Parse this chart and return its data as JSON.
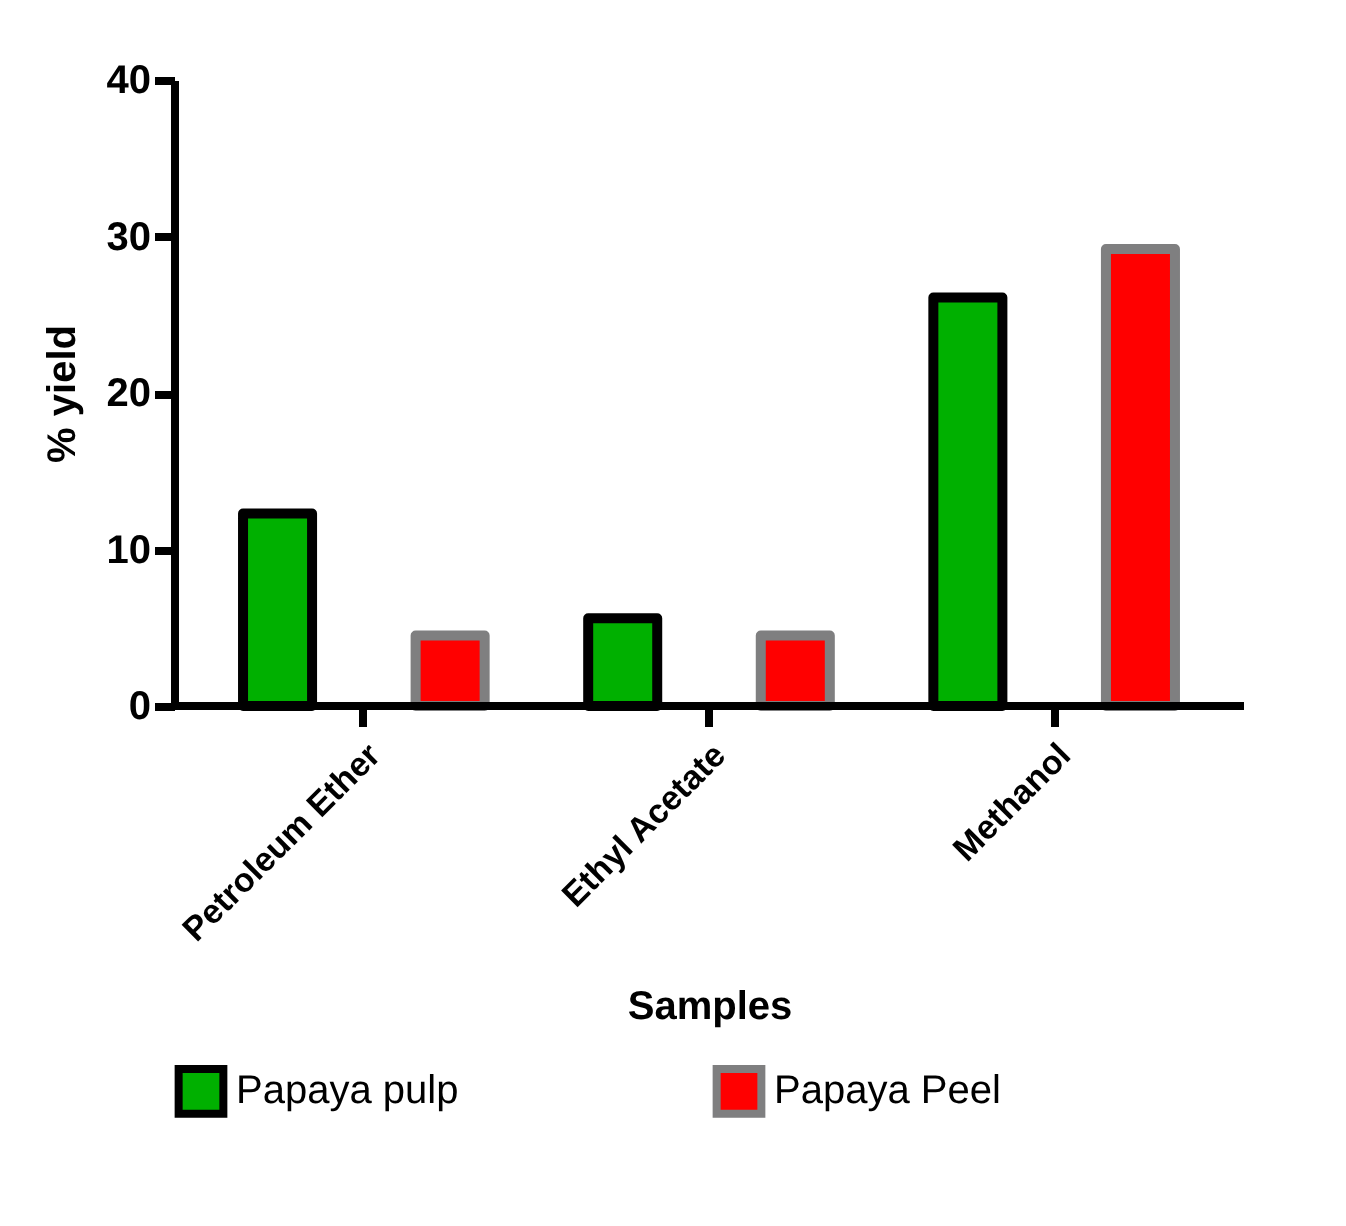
{
  "chart_data": {
    "type": "bar",
    "xlabel": "Samples",
    "ylabel": "% yield",
    "categories": [
      "Petroleum Ether",
      "Ethyl Acetate",
      "Methanol"
    ],
    "series": [
      {
        "name": "Papaya pulp",
        "color": "#00b000",
        "values": [
          12.3,
          5.6,
          26.1
        ]
      },
      {
        "name": "Papaya Peel",
        "color": "#ff0000",
        "values": [
          4.5,
          4.5,
          29.2
        ]
      }
    ],
    "ylim": [
      0,
      40
    ],
    "yticks": [
      0,
      10,
      20,
      30,
      40
    ],
    "grid": false,
    "legend": "bottom"
  }
}
